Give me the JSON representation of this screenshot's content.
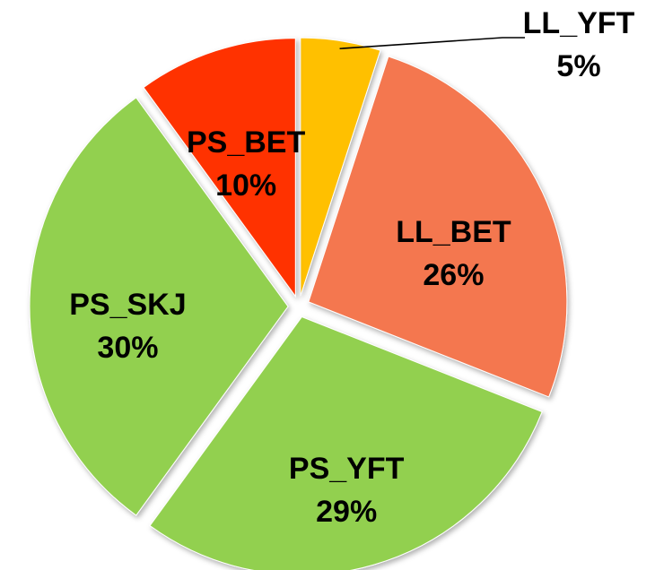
{
  "chart_data": {
    "type": "pie",
    "categories": [
      "LL_YFT",
      "LL_BET",
      "PS_YFT",
      "PS_SKJ",
      "PS_BET"
    ],
    "values": [
      5,
      26,
      29,
      30,
      10
    ],
    "value_labels": [
      "5%",
      "26%",
      "29%",
      "30%",
      "10%"
    ],
    "colors": [
      "#ffc000",
      "#f4774f",
      "#92d050",
      "#92d050",
      "#ff3300"
    ]
  }
}
